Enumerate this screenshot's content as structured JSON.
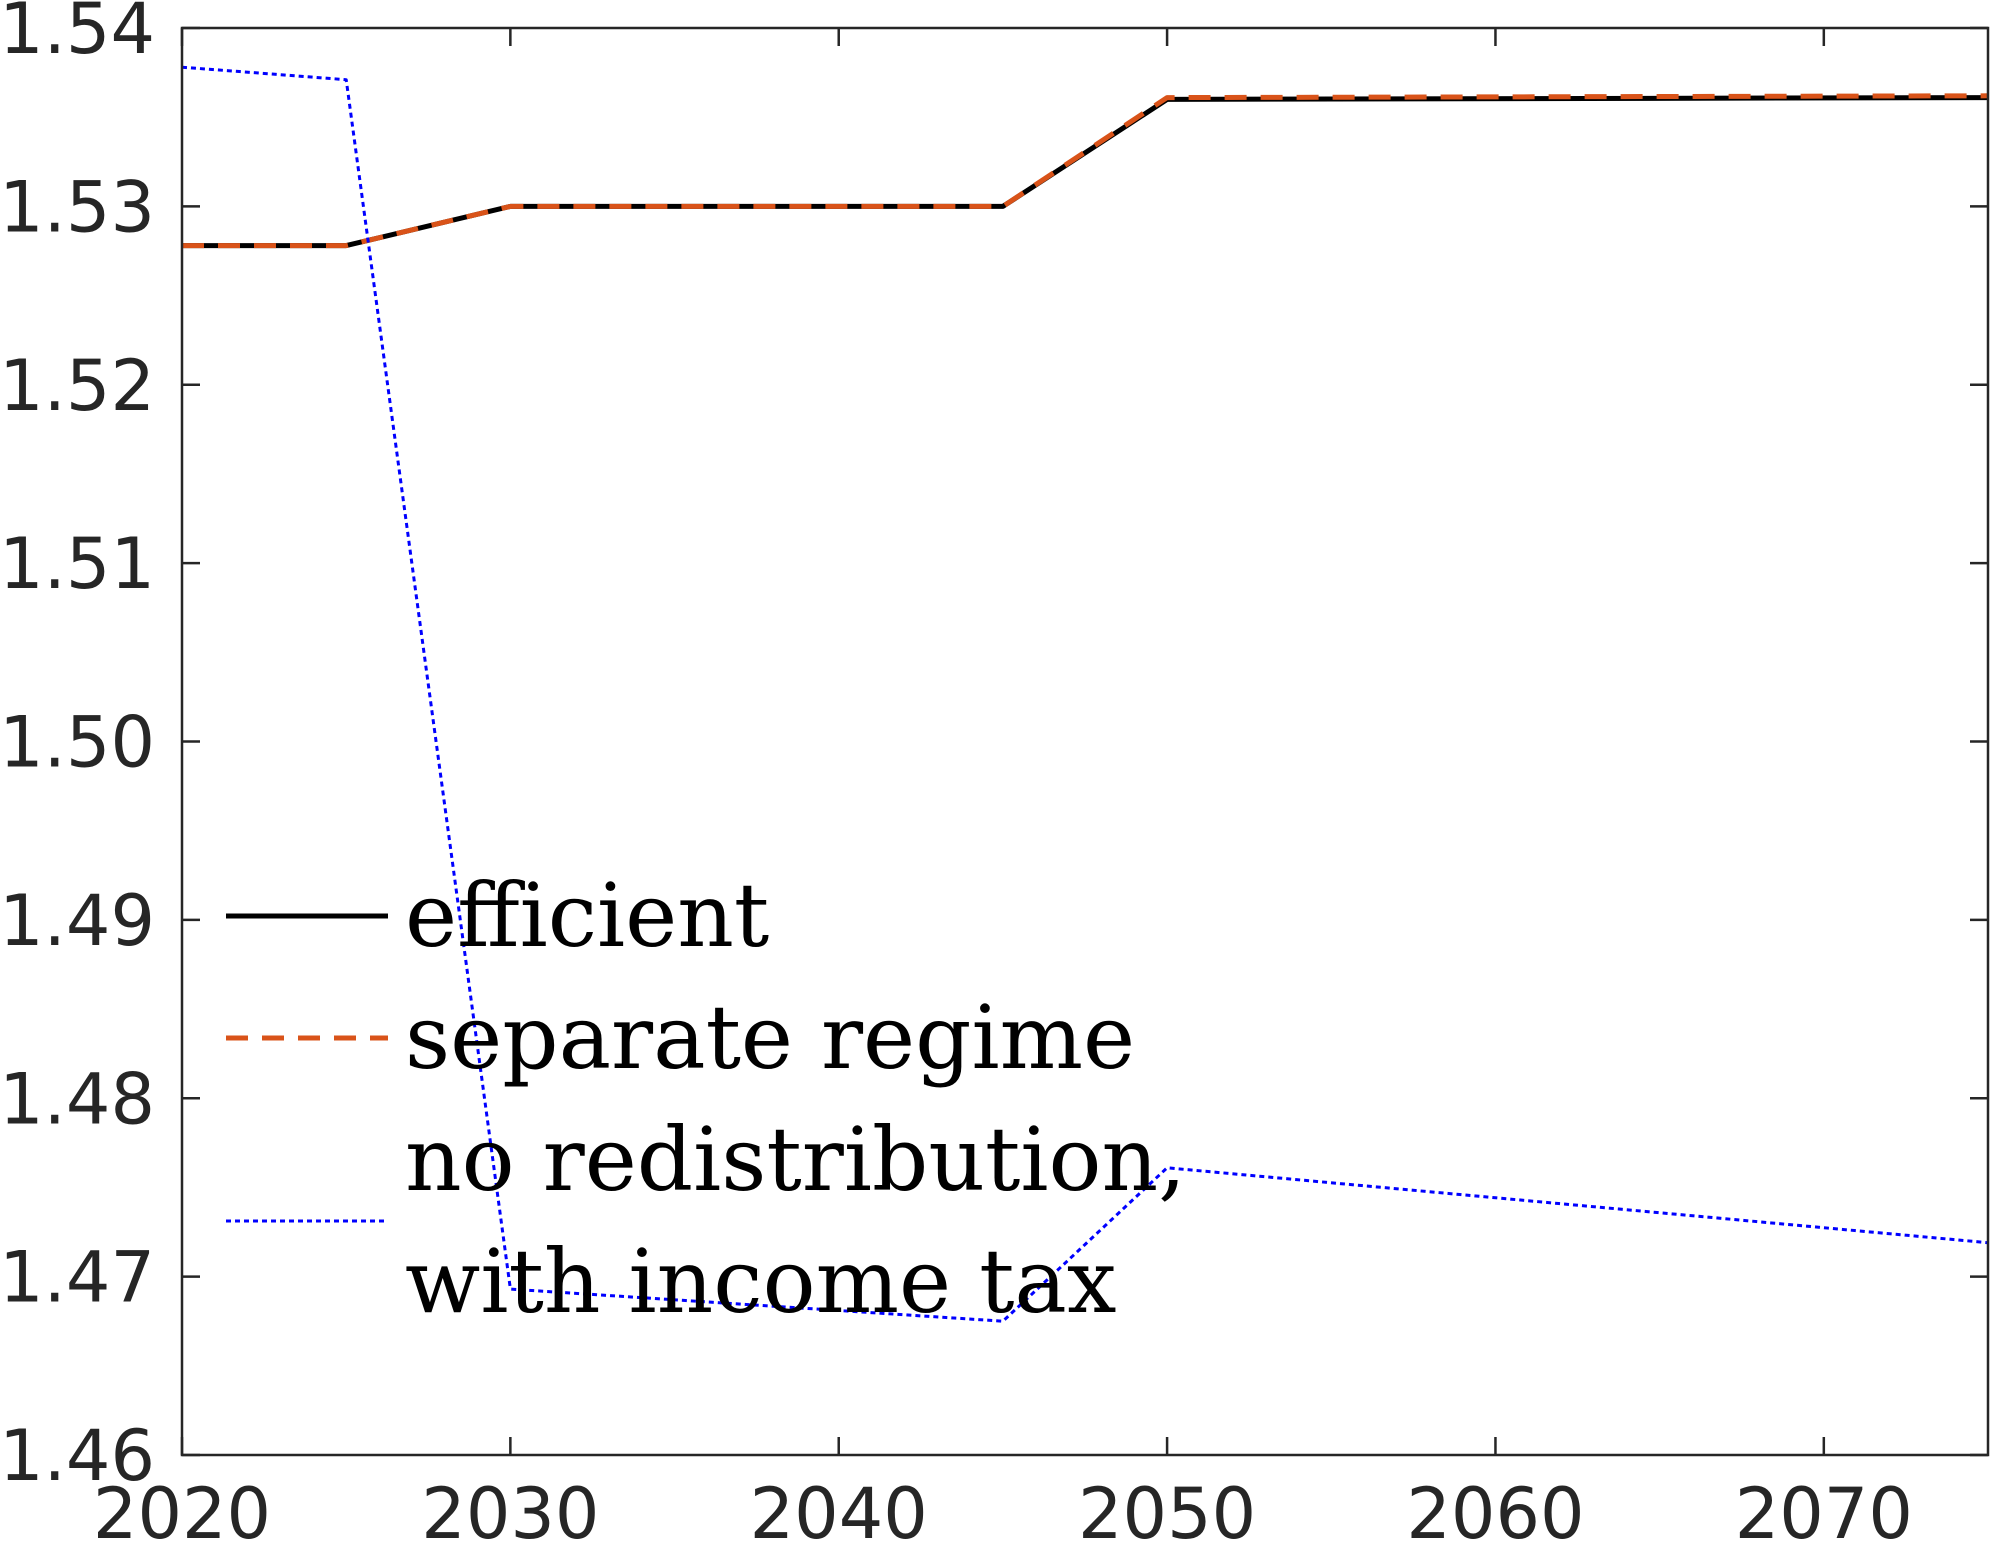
{
  "chart_data": {
    "type": "line",
    "title": "",
    "xlabel": "",
    "ylabel": "",
    "xlim": [
      2020,
      2075
    ],
    "ylim": [
      1.46,
      1.54
    ],
    "xticks": [
      2020,
      2030,
      2040,
      2050,
      2060,
      2070
    ],
    "xtick_labels": [
      "2020",
      "2030",
      "2040",
      "2050",
      "2060",
      "2070"
    ],
    "yticks": [
      1.46,
      1.47,
      1.48,
      1.49,
      1.5,
      1.51,
      1.52,
      1.53,
      1.54
    ],
    "ytick_labels": [
      "1.46",
      "1.47",
      "1.48",
      "1.49",
      "1.50",
      "1.51",
      "1.52",
      "1.53",
      "1.54"
    ],
    "grid": false,
    "legend_position": "lower-left",
    "series": [
      {
        "name": "efficient",
        "legend_lines": [
          "efficient"
        ],
        "color": "#000000",
        "style": "solid",
        "x": [
          2020,
          2025,
          2030,
          2045,
          2050,
          2075
        ],
        "y": [
          1.5278,
          1.5278,
          1.53,
          1.53,
          1.536,
          1.5361
        ]
      },
      {
        "name": "separate regime",
        "legend_lines": [
          "separate regime"
        ],
        "color": "#D95319",
        "style": "dashed",
        "x": [
          2020,
          2025,
          2030,
          2045,
          2050,
          2075
        ],
        "y": [
          1.5278,
          1.5278,
          1.53,
          1.53,
          1.5361,
          1.5362
        ]
      },
      {
        "name": "no redistribution, with income tax",
        "legend_lines": [
          "no redistribution,",
          "with income tax"
        ],
        "color": "#0000FF",
        "style": "dotted",
        "x": [
          2020,
          2025,
          2030,
          2045,
          2050,
          2075
        ],
        "y": [
          1.5378,
          1.5371,
          1.4693,
          1.4675,
          1.4761,
          1.4719
        ]
      }
    ]
  }
}
